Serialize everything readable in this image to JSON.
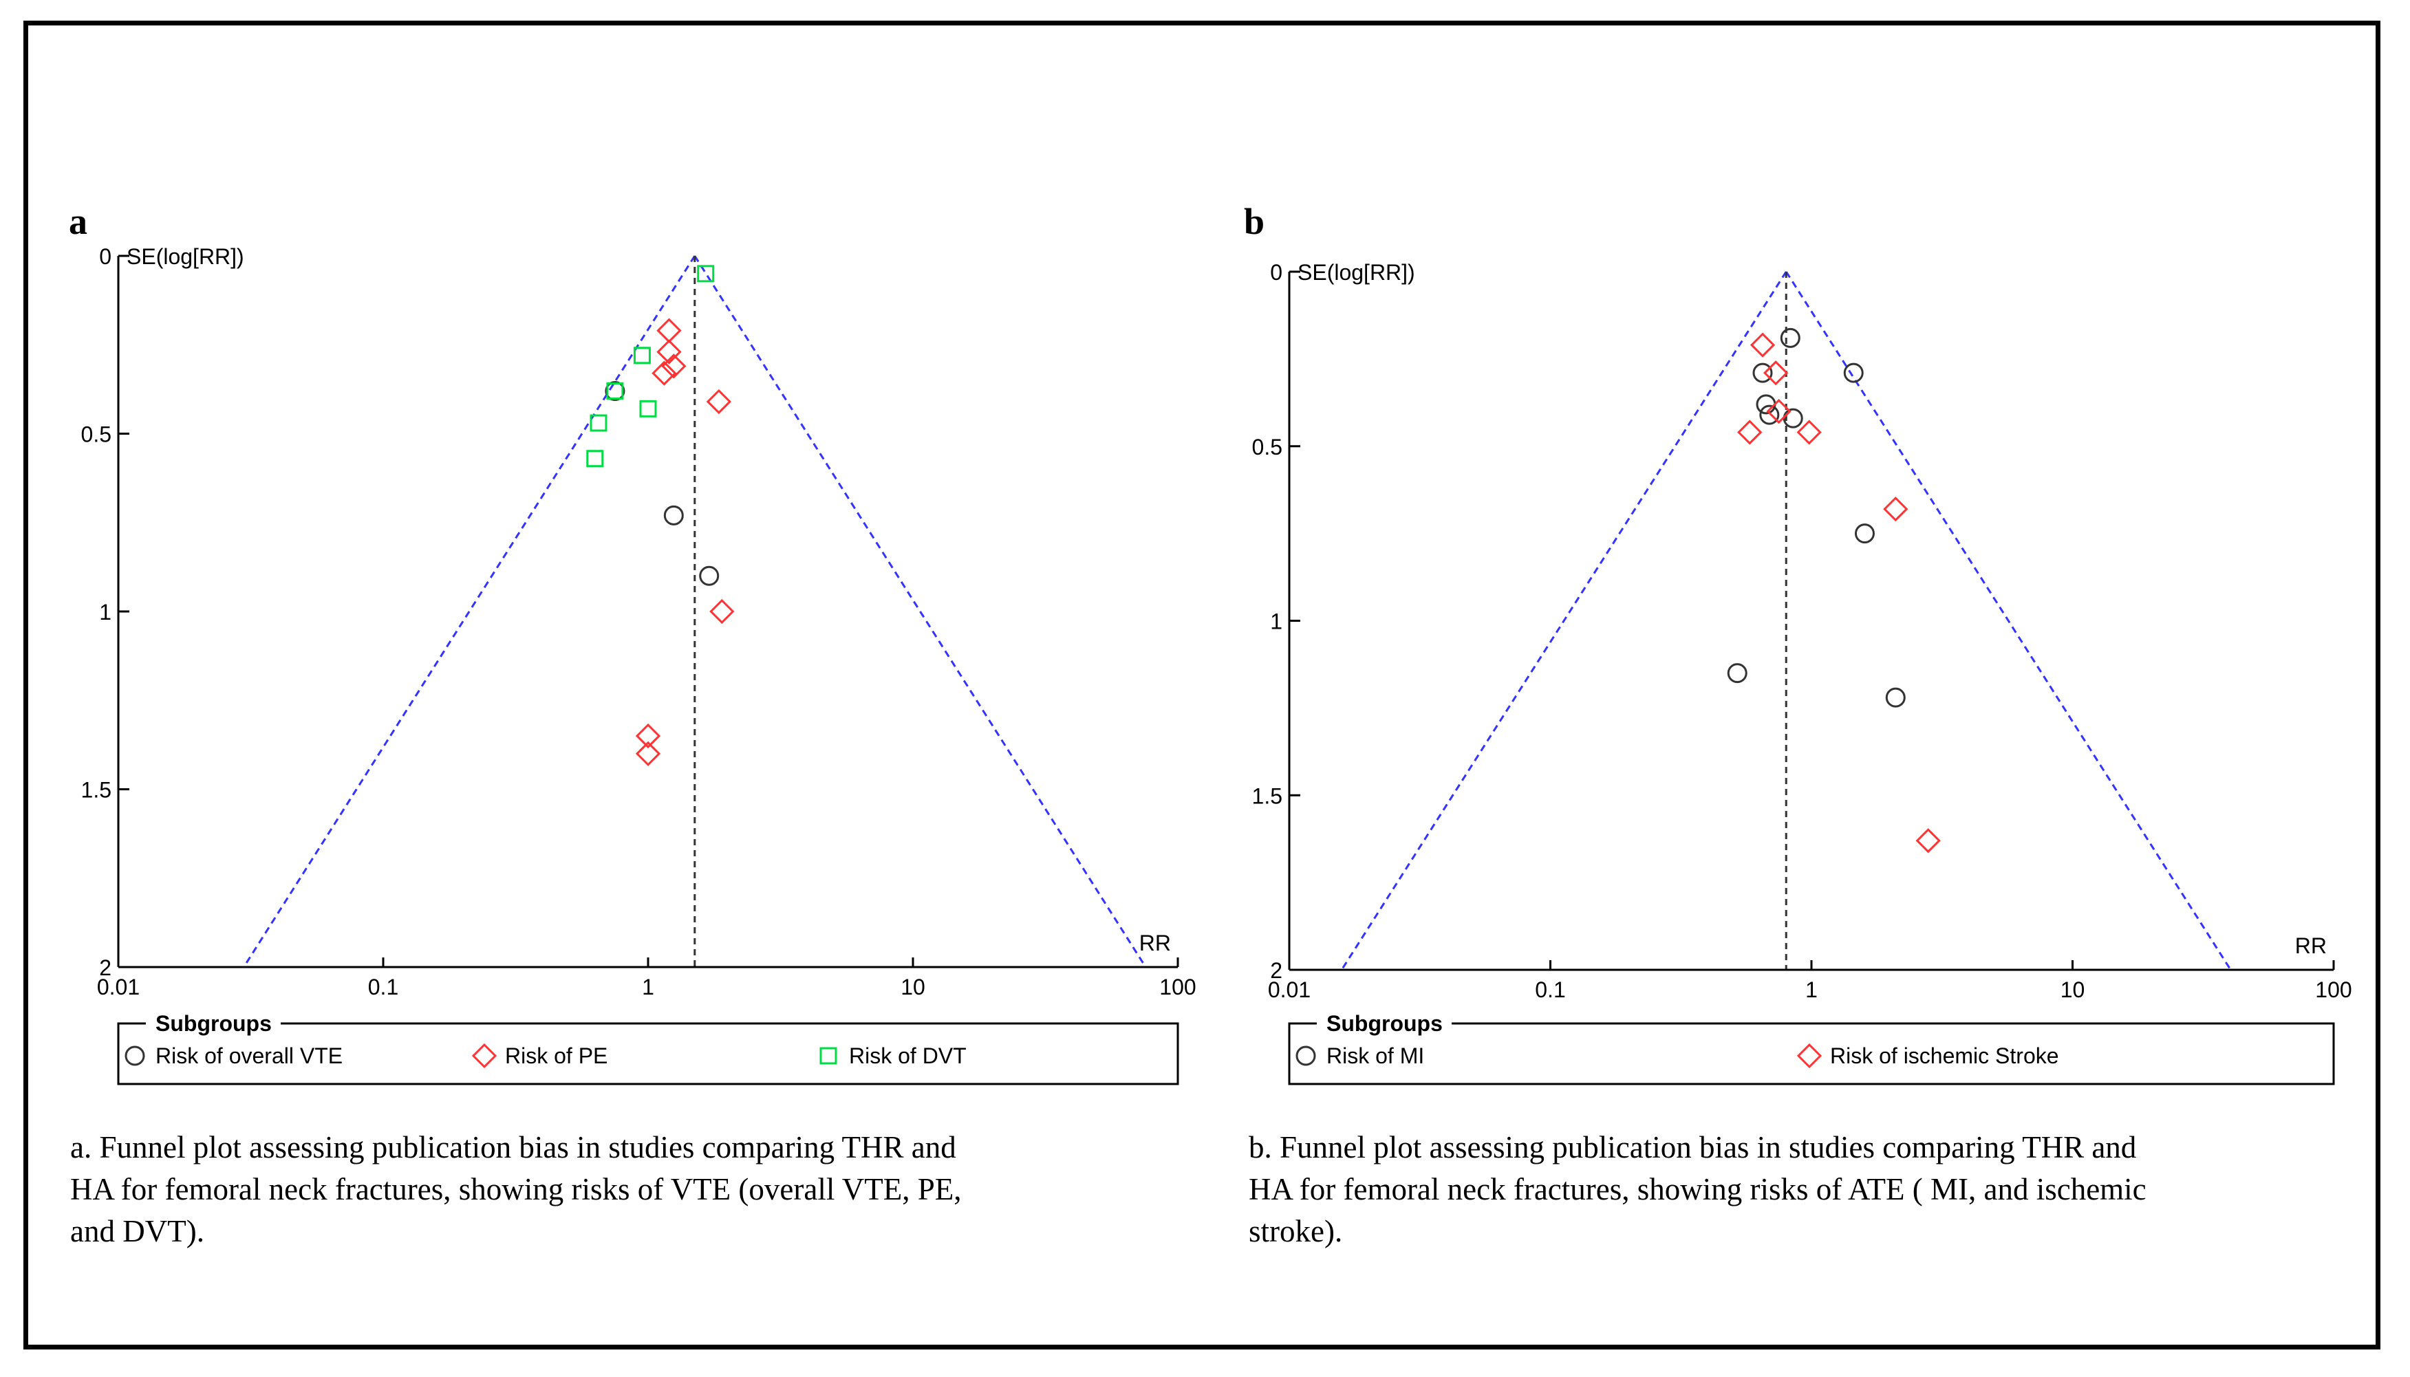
{
  "chart_data": [
    {
      "type": "scatter",
      "panel_label": "a",
      "title": "",
      "xlabel": "RR",
      "ylabel": "SE(log[RR])",
      "x_scale": "log",
      "xlim": [
        0.01,
        100
      ],
      "ylim": [
        0,
        2
      ],
      "y_inverted": true,
      "x_ticks": [
        0.01,
        0.1,
        1,
        10,
        100
      ],
      "x_tick_labels": [
        "0.01",
        "0.1",
        "1",
        "10",
        "100"
      ],
      "y_ticks": [
        0,
        0.5,
        1,
        1.5,
        2
      ],
      "y_tick_labels": [
        "0",
        "0.5",
        "1",
        "1.5",
        "2"
      ],
      "pooled_rr": 1.5,
      "funnel": {
        "apex_rr": 1.5,
        "se_max": 2
      },
      "legend": {
        "title": "Subgroups",
        "position": "bottom"
      },
      "series": [
        {
          "name": "Risk of  overall VTE",
          "marker": "circle",
          "color": "#333333",
          "points": [
            {
              "x": 0.75,
              "y": 0.38
            },
            {
              "x": 1.25,
              "y": 0.73
            },
            {
              "x": 1.7,
              "y": 0.9
            }
          ]
        },
        {
          "name": "Risk of PE",
          "marker": "diamond",
          "color": "#ff3333",
          "points": [
            {
              "x": 1.2,
              "y": 0.21
            },
            {
              "x": 1.2,
              "y": 0.27
            },
            {
              "x": 1.25,
              "y": 0.31
            },
            {
              "x": 1.15,
              "y": 0.33
            },
            {
              "x": 1.85,
              "y": 0.41
            },
            {
              "x": 1.9,
              "y": 1.0
            },
            {
              "x": 1.0,
              "y": 1.35
            },
            {
              "x": 1.0,
              "y": 1.4
            }
          ]
        },
        {
          "name": "Risk of DVT",
          "marker": "square",
          "color": "#00dd44",
          "points": [
            {
              "x": 1.65,
              "y": 0.05
            },
            {
              "x": 0.95,
              "y": 0.28
            },
            {
              "x": 0.75,
              "y": 0.38
            },
            {
              "x": 1.0,
              "y": 0.43
            },
            {
              "x": 0.65,
              "y": 0.47
            },
            {
              "x": 0.63,
              "y": 0.57
            }
          ]
        }
      ]
    },
    {
      "type": "scatter",
      "panel_label": "b",
      "title": "",
      "xlabel": "RR",
      "ylabel": "SE(log[RR])",
      "x_scale": "log",
      "xlim": [
        0.01,
        100
      ],
      "ylim": [
        0,
        2
      ],
      "y_inverted": true,
      "x_ticks": [
        0.01,
        0.1,
        1,
        10,
        100
      ],
      "x_tick_labels": [
        "0.01",
        "0.1",
        "1",
        "10",
        "100"
      ],
      "y_ticks": [
        0,
        0.5,
        1,
        1.5,
        2
      ],
      "y_tick_labels": [
        "0",
        "0.5",
        "1",
        "1.5",
        "2"
      ],
      "pooled_rr": 0.8,
      "funnel": {
        "apex_rr": 0.8,
        "se_max": 2
      },
      "legend": {
        "title": "Subgroups",
        "position": "bottom"
      },
      "series": [
        {
          "name": "Risk of MI",
          "marker": "circle",
          "color": "#333333",
          "points": [
            {
              "x": 0.83,
              "y": 0.19
            },
            {
              "x": 1.45,
              "y": 0.29
            },
            {
              "x": 0.65,
              "y": 0.29
            },
            {
              "x": 0.67,
              "y": 0.38
            },
            {
              "x": 0.69,
              "y": 0.41
            },
            {
              "x": 0.85,
              "y": 0.42
            },
            {
              "x": 1.6,
              "y": 0.75
            },
            {
              "x": 0.52,
              "y": 1.15
            },
            {
              "x": 2.1,
              "y": 1.22
            }
          ]
        },
        {
          "name": "Risk of ischemic Stroke",
          "marker": "diamond",
          "color": "#ff3333",
          "points": [
            {
              "x": 0.65,
              "y": 0.21
            },
            {
              "x": 0.73,
              "y": 0.29
            },
            {
              "x": 0.75,
              "y": 0.4
            },
            {
              "x": 0.58,
              "y": 0.46
            },
            {
              "x": 0.98,
              "y": 0.46
            },
            {
              "x": 2.1,
              "y": 0.68
            },
            {
              "x": 2.8,
              "y": 1.63
            }
          ]
        }
      ]
    }
  ],
  "captions": [
    {
      "lines": [
        "a. Funnel plot assessing publication bias in studies comparing THR and",
        "HA for femoral neck fractures, showing risks of VTE (overall VTE, PE,",
        "and DVT)."
      ]
    },
    {
      "lines": [
        "b. Funnel plot assessing publication bias in studies comparing THR and",
        "HA for femoral neck fractures, showing risks of  ATE ( MI, and ischemic",
        "stroke)."
      ]
    }
  ]
}
